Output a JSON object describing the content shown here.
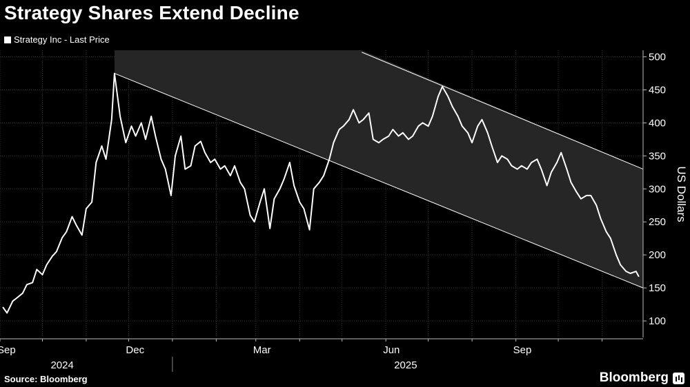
{
  "header": {
    "title": "Strategy Shares Extend Decline"
  },
  "footer": {
    "source": "Source: Bloomberg",
    "brand": "Bloomberg",
    "brand_icon": "bloomberg-chart-icon"
  },
  "chart_data": {
    "type": "line",
    "title": "Strategy Shares Extend Decline",
    "ylabel": "US Dollars",
    "xlabel": "",
    "ylim": [
      75,
      510
    ],
    "yticks": [
      100,
      150,
      200,
      250,
      300,
      350,
      400,
      450,
      500
    ],
    "xlim": [
      "2024-09-01",
      "2025-11-30"
    ],
    "grid": true,
    "legend_position": "top-left",
    "x_month_ticks": [
      {
        "label": "Sep",
        "date": "2024-09-01"
      },
      {
        "label": "Dec",
        "date": "2024-12-01"
      },
      {
        "label": "Mar",
        "date": "2025-03-01"
      },
      {
        "label": "Jun",
        "date": "2025-06-01"
      },
      {
        "label": "Sep",
        "date": "2025-09-01"
      }
    ],
    "x_year_ticks": [
      {
        "label": "2024",
        "date": "2024-10-15"
      },
      {
        "label": "2025",
        "date": "2025-06-15"
      }
    ],
    "series": [
      {
        "name": "Strategy Inc - Last Price",
        "color": "#ffffff",
        "points": [
          [
            "2024-09-03",
            121
          ],
          [
            "2024-09-06",
            112
          ],
          [
            "2024-09-10",
            130
          ],
          [
            "2024-09-13",
            135
          ],
          [
            "2024-09-17",
            142
          ],
          [
            "2024-09-20",
            155
          ],
          [
            "2024-09-24",
            158
          ],
          [
            "2024-09-27",
            178
          ],
          [
            "2024-10-01",
            170
          ],
          [
            "2024-10-04",
            185
          ],
          [
            "2024-10-08",
            198
          ],
          [
            "2024-10-11",
            205
          ],
          [
            "2024-10-15",
            226
          ],
          [
            "2024-10-18",
            235
          ],
          [
            "2024-10-22",
            258
          ],
          [
            "2024-10-25",
            245
          ],
          [
            "2024-10-29",
            230
          ],
          [
            "2024-11-01",
            270
          ],
          [
            "2024-11-05",
            280
          ],
          [
            "2024-11-08",
            340
          ],
          [
            "2024-11-12",
            365
          ],
          [
            "2024-11-15",
            345
          ],
          [
            "2024-11-19",
            405
          ],
          [
            "2024-11-21",
            475
          ],
          [
            "2024-11-25",
            410
          ],
          [
            "2024-11-29",
            370
          ],
          [
            "2024-12-03",
            395
          ],
          [
            "2024-12-06",
            380
          ],
          [
            "2024-12-10",
            400
          ],
          [
            "2024-12-13",
            375
          ],
          [
            "2024-12-17",
            410
          ],
          [
            "2024-12-20",
            380
          ],
          [
            "2024-12-24",
            345
          ],
          [
            "2024-12-27",
            330
          ],
          [
            "2024-12-31",
            290
          ],
          [
            "2025-01-03",
            350
          ],
          [
            "2025-01-07",
            380
          ],
          [
            "2025-01-10",
            330
          ],
          [
            "2025-01-14",
            335
          ],
          [
            "2025-01-17",
            365
          ],
          [
            "2025-01-21",
            372
          ],
          [
            "2025-01-24",
            355
          ],
          [
            "2025-01-28",
            340
          ],
          [
            "2025-01-31",
            345
          ],
          [
            "2025-02-04",
            330
          ],
          [
            "2025-02-07",
            335
          ],
          [
            "2025-02-11",
            320
          ],
          [
            "2025-02-14",
            335
          ],
          [
            "2025-02-18",
            310
          ],
          [
            "2025-02-21",
            300
          ],
          [
            "2025-02-25",
            260
          ],
          [
            "2025-02-28",
            250
          ],
          [
            "2025-03-04",
            280
          ],
          [
            "2025-03-07",
            300
          ],
          [
            "2025-03-11",
            240
          ],
          [
            "2025-03-14",
            285
          ],
          [
            "2025-03-18",
            300
          ],
          [
            "2025-03-21",
            315
          ],
          [
            "2025-03-25",
            340
          ],
          [
            "2025-03-28",
            305
          ],
          [
            "2025-04-01",
            280
          ],
          [
            "2025-04-04",
            270
          ],
          [
            "2025-04-08",
            238
          ],
          [
            "2025-04-11",
            300
          ],
          [
            "2025-04-15",
            310
          ],
          [
            "2025-04-18",
            320
          ],
          [
            "2025-04-22",
            345
          ],
          [
            "2025-04-25",
            370
          ],
          [
            "2025-04-29",
            390
          ],
          [
            "2025-05-02",
            395
          ],
          [
            "2025-05-06",
            405
          ],
          [
            "2025-05-09",
            420
          ],
          [
            "2025-05-13",
            400
          ],
          [
            "2025-05-16",
            405
          ],
          [
            "2025-05-20",
            415
          ],
          [
            "2025-05-23",
            375
          ],
          [
            "2025-05-27",
            370
          ],
          [
            "2025-05-30",
            375
          ],
          [
            "2025-06-03",
            380
          ],
          [
            "2025-06-06",
            390
          ],
          [
            "2025-06-10",
            380
          ],
          [
            "2025-06-13",
            385
          ],
          [
            "2025-06-17",
            375
          ],
          [
            "2025-06-20",
            380
          ],
          [
            "2025-06-24",
            395
          ],
          [
            "2025-06-27",
            400
          ],
          [
            "2025-07-01",
            395
          ],
          [
            "2025-07-04",
            410
          ],
          [
            "2025-07-08",
            440
          ],
          [
            "2025-07-11",
            455
          ],
          [
            "2025-07-15",
            440
          ],
          [
            "2025-07-18",
            425
          ],
          [
            "2025-07-22",
            410
          ],
          [
            "2025-07-25",
            395
          ],
          [
            "2025-07-29",
            385
          ],
          [
            "2025-08-01",
            370
          ],
          [
            "2025-08-05",
            395
          ],
          [
            "2025-08-08",
            405
          ],
          [
            "2025-08-12",
            385
          ],
          [
            "2025-08-15",
            365
          ],
          [
            "2025-08-19",
            340
          ],
          [
            "2025-08-22",
            350
          ],
          [
            "2025-08-26",
            345
          ],
          [
            "2025-08-29",
            335
          ],
          [
            "2025-09-02",
            330
          ],
          [
            "2025-09-05",
            335
          ],
          [
            "2025-09-09",
            330
          ],
          [
            "2025-09-12",
            340
          ],
          [
            "2025-09-16",
            345
          ],
          [
            "2025-09-19",
            330
          ],
          [
            "2025-09-23",
            305
          ],
          [
            "2025-09-26",
            325
          ],
          [
            "2025-09-30",
            340
          ],
          [
            "2025-10-03",
            355
          ],
          [
            "2025-10-07",
            330
          ],
          [
            "2025-10-10",
            310
          ],
          [
            "2025-10-14",
            295
          ],
          [
            "2025-10-17",
            285
          ],
          [
            "2025-10-21",
            290
          ],
          [
            "2025-10-24",
            290
          ],
          [
            "2025-10-28",
            275
          ],
          [
            "2025-10-31",
            255
          ],
          [
            "2025-11-04",
            235
          ],
          [
            "2025-11-07",
            225
          ],
          [
            "2025-11-11",
            200
          ],
          [
            "2025-11-14",
            185
          ],
          [
            "2025-11-18",
            175
          ],
          [
            "2025-11-21",
            172
          ],
          [
            "2025-11-25",
            175
          ],
          [
            "2025-11-27",
            167
          ]
        ]
      }
    ],
    "trend_channel": {
      "lower_line": [
        [
          "2024-11-21",
          475
        ],
        [
          "2025-11-30",
          150
        ]
      ],
      "upper_line": [
        [
          "2025-05-15",
          507
        ],
        [
          "2025-11-30",
          330
        ]
      ]
    }
  }
}
